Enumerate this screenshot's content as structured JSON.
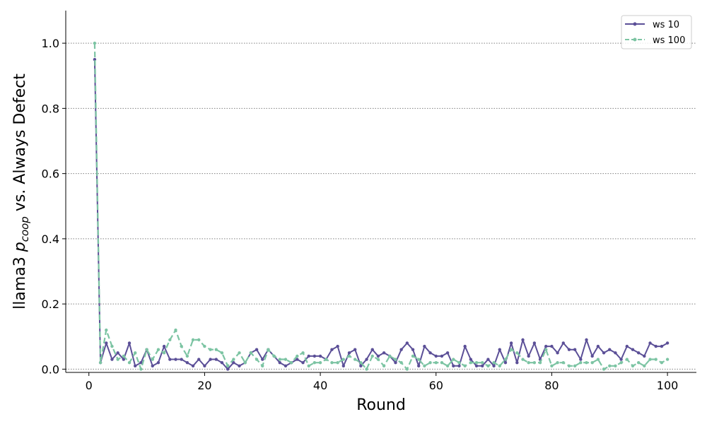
{
  "chart_data": {
    "type": "line",
    "xlabel": "Round",
    "ylabel_prefix": "llama3 ",
    "ylabel_italic": "p",
    "ylabel_sub": "coop",
    "ylabel_suffix": " vs. Always Defect",
    "xlim": [
      -4,
      105
    ],
    "ylim": [
      -0.01,
      1.1
    ],
    "xticks": [
      0,
      20,
      40,
      60,
      80,
      100
    ],
    "yticks": [
      0.0,
      0.2,
      0.4,
      0.6,
      0.8,
      1.0
    ],
    "xtick_labels": [
      "0",
      "20",
      "40",
      "60",
      "80",
      "100"
    ],
    "ytick_labels": [
      "0.0",
      "0.2",
      "0.4",
      "0.6",
      "0.8",
      "1.0"
    ],
    "grid": "horizontal dotted",
    "legend_position": "top-right",
    "series": [
      {
        "name": "ws 10",
        "color": "#5b4f97",
        "style": "solid",
        "x": [
          1,
          2,
          3,
          4,
          5,
          6,
          7,
          8,
          9,
          10,
          11,
          12,
          13,
          14,
          15,
          16,
          17,
          18,
          19,
          20,
          21,
          22,
          23,
          24,
          25,
          26,
          27,
          28,
          29,
          30,
          31,
          32,
          33,
          34,
          35,
          36,
          37,
          38,
          39,
          40,
          41,
          42,
          43,
          44,
          45,
          46,
          47,
          48,
          49,
          50,
          51,
          52,
          53,
          54,
          55,
          56,
          57,
          58,
          59,
          60,
          61,
          62,
          63,
          64,
          65,
          66,
          67,
          68,
          69,
          70,
          71,
          72,
          73,
          74,
          75,
          76,
          77,
          78,
          79,
          80,
          81,
          82,
          83,
          84,
          85,
          86,
          87,
          88,
          89,
          90,
          91,
          92,
          93,
          94,
          95,
          96,
          97,
          98,
          99,
          100
        ],
        "values": [
          0.95,
          0.02,
          0.08,
          0.03,
          0.05,
          0.03,
          0.08,
          0.01,
          0.02,
          0.06,
          0.01,
          0.02,
          0.07,
          0.03,
          0.03,
          0.03,
          0.02,
          0.01,
          0.03,
          0.01,
          0.03,
          0.03,
          0.02,
          0.0,
          0.02,
          0.01,
          0.02,
          0.05,
          0.06,
          0.03,
          0.06,
          0.04,
          0.02,
          0.01,
          0.02,
          0.03,
          0.02,
          0.04,
          0.04,
          0.04,
          0.03,
          0.06,
          0.07,
          0.01,
          0.05,
          0.06,
          0.01,
          0.03,
          0.06,
          0.04,
          0.05,
          0.04,
          0.02,
          0.06,
          0.08,
          0.06,
          0.01,
          0.07,
          0.05,
          0.04,
          0.04,
          0.05,
          0.01,
          0.01,
          0.07,
          0.03,
          0.01,
          0.01,
          0.03,
          0.01,
          0.06,
          0.02,
          0.08,
          0.02,
          0.09,
          0.04,
          0.08,
          0.03,
          0.07,
          0.07,
          0.05,
          0.08,
          0.06,
          0.06,
          0.03,
          0.09,
          0.04,
          0.07,
          0.05,
          0.06,
          0.05,
          0.03,
          0.07,
          0.06,
          0.05,
          0.04,
          0.08,
          0.07,
          0.07,
          0.08
        ]
      },
      {
        "name": "ws 100",
        "color": "#7cc4a3",
        "style": "dashed",
        "x": [
          1,
          2,
          3,
          4,
          5,
          6,
          7,
          8,
          9,
          10,
          11,
          12,
          13,
          14,
          15,
          16,
          17,
          18,
          19,
          20,
          21,
          22,
          23,
          24,
          25,
          26,
          27,
          28,
          29,
          30,
          31,
          32,
          33,
          34,
          35,
          36,
          37,
          38,
          39,
          40,
          41,
          42,
          43,
          44,
          45,
          46,
          47,
          48,
          49,
          50,
          51,
          52,
          53,
          54,
          55,
          56,
          57,
          58,
          59,
          60,
          61,
          62,
          63,
          64,
          65,
          66,
          67,
          68,
          69,
          70,
          71,
          72,
          73,
          74,
          75,
          76,
          77,
          78,
          79,
          80,
          81,
          82,
          83,
          84,
          85,
          86,
          87,
          88,
          89,
          90,
          91,
          92,
          93,
          94,
          95,
          96,
          97,
          98,
          99,
          100
        ],
        "values": [
          1.0,
          0.02,
          0.12,
          0.07,
          0.03,
          0.04,
          0.02,
          0.05,
          0.0,
          0.06,
          0.03,
          0.06,
          0.05,
          0.09,
          0.12,
          0.07,
          0.04,
          0.09,
          0.09,
          0.07,
          0.06,
          0.06,
          0.05,
          0.01,
          0.03,
          0.05,
          0.02,
          0.05,
          0.03,
          0.01,
          0.06,
          0.04,
          0.03,
          0.03,
          0.02,
          0.04,
          0.05,
          0.01,
          0.02,
          0.02,
          0.03,
          0.02,
          0.02,
          0.03,
          0.04,
          0.03,
          0.02,
          0.0,
          0.04,
          0.03,
          0.01,
          0.04,
          0.03,
          0.02,
          0.0,
          0.04,
          0.03,
          0.01,
          0.02,
          0.02,
          0.02,
          0.01,
          0.03,
          0.02,
          0.01,
          0.02,
          0.02,
          0.02,
          0.01,
          0.02,
          0.01,
          0.03,
          0.06,
          0.05,
          0.03,
          0.02,
          0.02,
          0.02,
          0.06,
          0.01,
          0.02,
          0.02,
          0.01,
          0.01,
          0.02,
          0.02,
          0.02,
          0.03,
          0.0,
          0.01,
          0.01,
          0.02,
          0.03,
          0.01,
          0.02,
          0.01,
          0.03,
          0.03,
          0.02,
          0.03
        ]
      }
    ]
  }
}
